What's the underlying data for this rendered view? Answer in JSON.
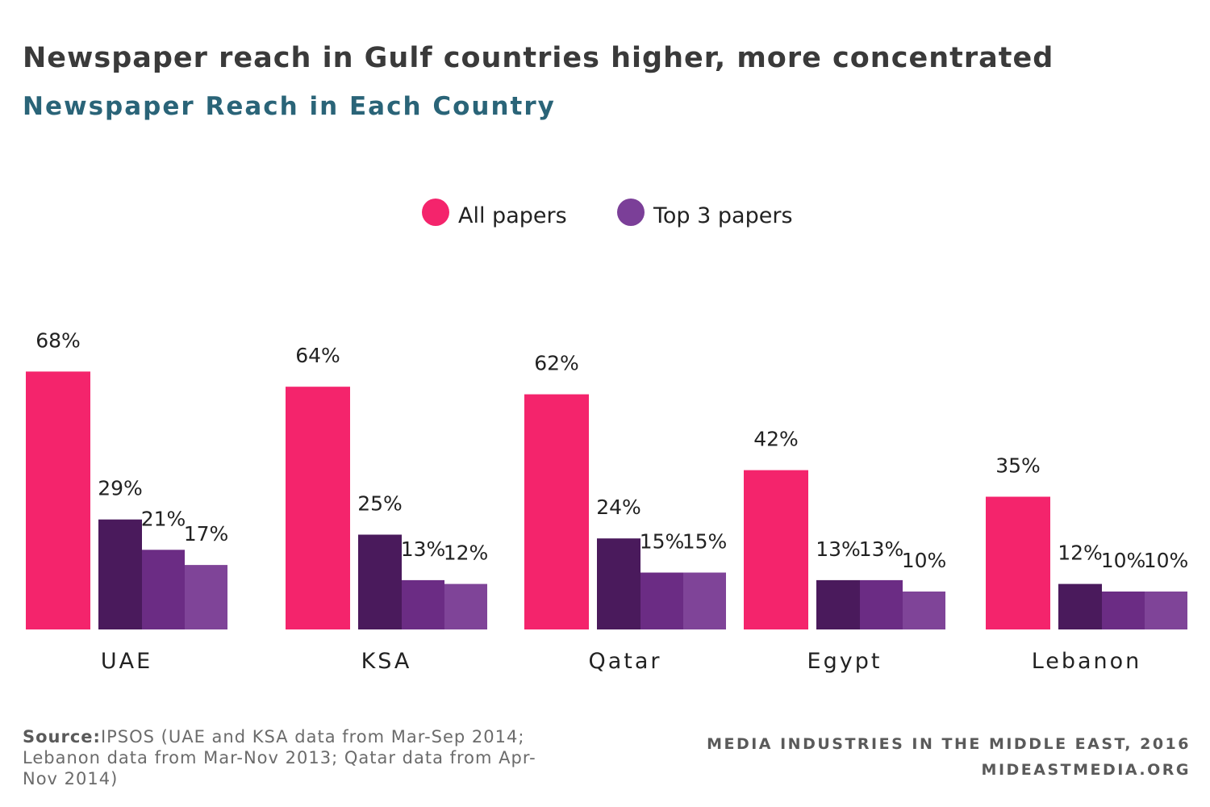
{
  "chart_data": {
    "type": "bar",
    "title": "Newspaper reach in Gulf countries higher, more concentrated",
    "subtitle": "Newspaper Reach in Each Country",
    "legend": [
      {
        "name": "All papers",
        "color": "#f4246c"
      },
      {
        "name": "Top 3 papers",
        "color": "#7b3f98"
      }
    ],
    "legend_position": "top-center",
    "categories": [
      "UAE",
      "KSA",
      "Qatar",
      "Egypt",
      "Lebanon"
    ],
    "series": [
      {
        "values": [
          68,
          64,
          62,
          42,
          35
        ],
        "labels": [
          "68%",
          "64%",
          "62%",
          "42%",
          "35%"
        ],
        "color": "#f4246c"
      },
      {
        "values": [
          29,
          25,
          24,
          13,
          12
        ],
        "labels": [
          "29%",
          "25%",
          "24%",
          "13%",
          "12%"
        ],
        "color": "#4a1a5c"
      },
      {
        "values": [
          21,
          13,
          15,
          13,
          10
        ],
        "labels": [
          "21%",
          "13%",
          "15%",
          "13%",
          "10%"
        ],
        "color": "#6b2c84"
      },
      {
        "values": [
          17,
          12,
          15,
          10,
          10
        ],
        "labels": [
          "17%",
          "12%",
          "15%",
          "10%",
          "10%"
        ],
        "color": "#7f4498"
      }
    ],
    "ylim": [
      0,
      70
    ],
    "grid": false
  },
  "footer": {
    "source_label": "Source:",
    "source_text": "IPSOS (UAE and KSA data from Mar-Sep 2014; Lebanon data from Mar-Nov 2013; Qatar data from Apr-Nov 2014)",
    "credit_line1": "MEDIA INDUSTRIES IN THE MIDDLE EAST, 2016",
    "credit_line2": "MIDEASTMEDIA.ORG"
  }
}
